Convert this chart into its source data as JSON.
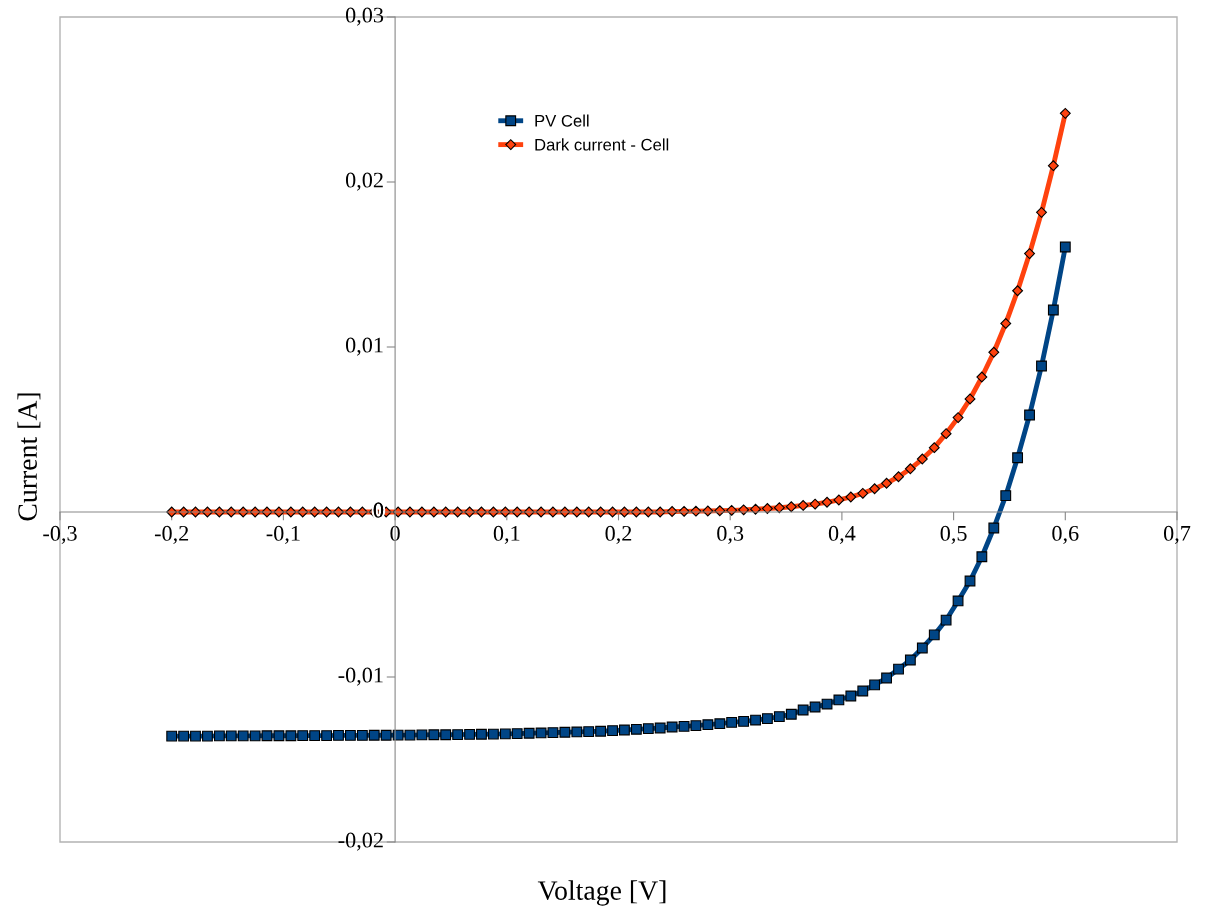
{
  "chart_data": {
    "type": "line",
    "xlabel": "Voltage [V]",
    "ylabel": "Current [A]",
    "xlim": [
      -0.3,
      0.7
    ],
    "ylim": [
      -0.02,
      0.03
    ],
    "xticks": [
      {
        "value": -0.3,
        "label": "-0,3"
      },
      {
        "value": -0.2,
        "label": "-0,2"
      },
      {
        "value": -0.1,
        "label": "-0,1"
      },
      0,
      {
        "value": 0.1,
        "label": "0,1"
      },
      {
        "value": 0.2,
        "label": "0,2"
      },
      {
        "value": 0.3,
        "label": "0,3"
      },
      {
        "value": 0.4,
        "label": "0,4"
      },
      {
        "value": 0.5,
        "label": "0,5"
      },
      {
        "value": 0.6,
        "label": "0,6"
      },
      {
        "value": 0.7,
        "label": "0,7"
      }
    ],
    "yticks": [
      {
        "value": -0.02,
        "label": "-0,02"
      },
      {
        "value": -0.01,
        "label": "-0,01"
      },
      0,
      {
        "value": 0.01,
        "label": "0,01"
      },
      {
        "value": 0.02,
        "label": "0,02"
      },
      {
        "value": 0.03,
        "label": "0,03"
      }
    ],
    "grid": false,
    "legend": "top",
    "line_style": "solid",
    "x": [
      -0.2,
      -0.1893,
      -0.1787,
      -0.168,
      -0.1573,
      -0.1467,
      -0.136,
      -0.1253,
      -0.1147,
      -0.104,
      -0.0933,
      -0.0827,
      -0.072,
      -0.0613,
      -0.0507,
      -0.04,
      -0.0293,
      -0.0187,
      -0.008,
      0.0027,
      0.0133,
      0.024,
      0.0347,
      0.0453,
      0.056,
      0.0667,
      0.0773,
      0.088,
      0.0987,
      0.1093,
      0.12,
      0.1307,
      0.1413,
      0.152,
      0.1627,
      0.1733,
      0.184,
      0.1947,
      0.2053,
      0.216,
      0.2267,
      0.2373,
      0.248,
      0.2587,
      0.2693,
      0.28,
      0.2907,
      0.3013,
      0.312,
      0.3227,
      0.3333,
      0.344,
      0.3547,
      0.3653,
      0.376,
      0.3867,
      0.3973,
      0.408,
      0.4187,
      0.4293,
      0.44,
      0.4507,
      0.4613,
      0.472,
      0.4827,
      0.4933,
      0.504,
      0.5147,
      0.5253,
      0.536,
      0.5467,
      0.5573,
      0.568,
      0.5787,
      0.5893,
      0.6
    ],
    "series": [
      {
        "name": "PV Cell",
        "color": "#004586",
        "marker": "square",
        "values": [
          -0.01358,
          -0.01358,
          -0.01358,
          -0.01358,
          -0.01357,
          -0.01357,
          -0.01357,
          -0.01357,
          -0.01356,
          -0.01356,
          -0.01356,
          -0.01355,
          -0.01355,
          -0.01355,
          -0.01354,
          -0.01354,
          -0.01354,
          -0.01353,
          -0.01353,
          -0.01352,
          -0.01352,
          -0.01351,
          -0.0135,
          -0.0135,
          -0.01349,
          -0.01348,
          -0.01347,
          -0.01346,
          -0.01345,
          -0.01343,
          -0.01341,
          -0.01339,
          -0.01337,
          -0.01335,
          -0.01333,
          -0.01331,
          -0.01329,
          -0.01325,
          -0.01321,
          -0.01317,
          -0.01313,
          -0.01309,
          -0.01303,
          -0.01299,
          -0.01295,
          -0.01289,
          -0.01283,
          -0.01275,
          -0.01269,
          -0.01261,
          -0.01252,
          -0.0124,
          -0.01226,
          -0.012,
          -0.01182,
          -0.01164,
          -0.01139,
          -0.01115,
          -0.01085,
          -0.01048,
          -0.01006,
          -0.00952,
          -0.00897,
          -0.00824,
          -0.00745,
          -0.00655,
          -0.00539,
          -0.00418,
          -0.00271,
          -0.00097,
          0.00099,
          0.00329,
          0.00588,
          0.00885,
          0.01224,
          0.01606
        ]
      },
      {
        "name": "Dark current - Cell",
        "color": "#ff420e",
        "marker": "diamond",
        "values": [
          0.0,
          0.0,
          0.0,
          0.0,
          0.0,
          0.0,
          0.0,
          0.0,
          0.0,
          0.0,
          0.0,
          0.0,
          0.0,
          0.0,
          0.0,
          0.0,
          0.0,
          0.0,
          0.0,
          0.0,
          0.0,
          0.0,
          0.0,
          0.0,
          0.0,
          0.0,
          0.0,
          0.0,
          0.0,
          0.0,
          0.0,
          0.0,
          0.0,
          0.0,
          0.0,
          0.0,
          0.0,
          0.0,
          0.0,
          0.0,
          0.0,
          0.0,
          3e-05,
          4e-05,
          5e-05,
          6e-05,
          8e-05,
          0.0001,
          0.00013,
          0.00017,
          0.00021,
          0.00026,
          0.00032,
          0.0004,
          0.00048,
          0.00059,
          0.00073,
          0.00091,
          0.00113,
          0.00141,
          0.00174,
          0.00214,
          0.00262,
          0.00321,
          0.0039,
          0.00475,
          0.00572,
          0.00685,
          0.00818,
          0.00968,
          0.01143,
          0.01341,
          0.01566,
          0.01816,
          0.02099,
          0.02416
        ]
      }
    ]
  }
}
